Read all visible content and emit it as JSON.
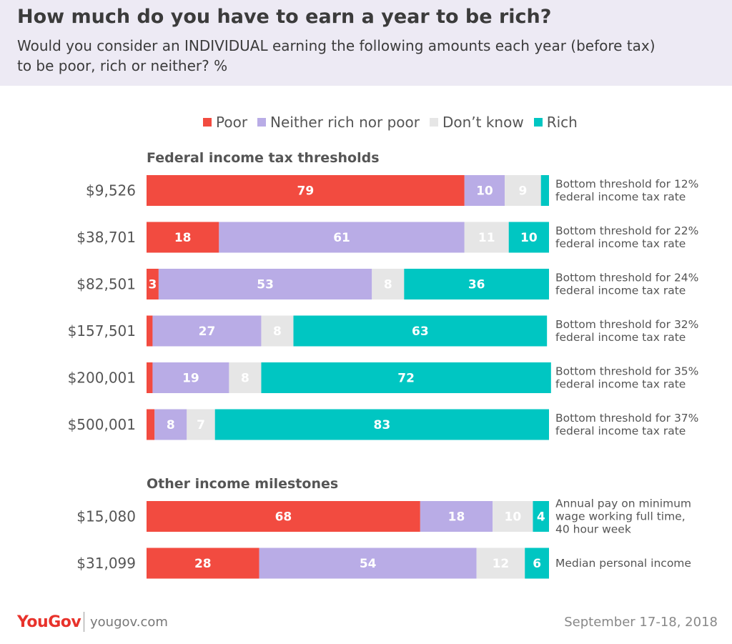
{
  "header": {
    "title": "How much do you have to earn a year to be rich?",
    "subtitle": "Would you consider an INDIVIDUAL earning the following amounts each year (before tax) to be poor, rich or neither? %"
  },
  "footer": {
    "logo": "YouGov",
    "url": "yougov.com",
    "date": "September 17-18, 2018"
  },
  "chart_data": {
    "type": "bar",
    "orientation": "horizontal",
    "stacked": true,
    "xlim": [
      0,
      100
    ],
    "series": [
      {
        "name": "Poor",
        "color": "#f24b40"
      },
      {
        "name": "Neither rich nor poor",
        "color": "#b9ace6"
      },
      {
        "name": "Don’t know",
        "color": "#e6e6e6"
      },
      {
        "name": "Rich",
        "color": "#00c6c2"
      }
    ],
    "groups": [
      {
        "title": "Federal income tax thresholds",
        "rows": [
          {
            "label": "$9,526",
            "values": [
              79,
              10,
              9,
              2
            ],
            "labels": [
              "79",
              "10",
              "9",
              ""
            ],
            "note": [
              "Bottom threshold for 12%",
              "federal income tax rate"
            ]
          },
          {
            "label": "$38,701",
            "values": [
              18,
              61,
              11,
              10
            ],
            "labels": [
              "18",
              "61",
              "11",
              "10"
            ],
            "note": [
              "Bottom threshold for 22%",
              "federal income tax rate"
            ]
          },
          {
            "label": "$82,501",
            "values": [
              3,
              53,
              8,
              36
            ],
            "labels": [
              "3",
              "53",
              "8",
              "36"
            ],
            "note": [
              "Bottom threshold for 24%",
              "federal income tax rate"
            ]
          },
          {
            "label": "$157,501",
            "values": [
              1.5,
              27,
              8,
              63
            ],
            "labels": [
              "",
              "27",
              "8",
              "63"
            ],
            "note": [
              "Bottom threshold for 32%",
              "federal income tax rate"
            ]
          },
          {
            "label": "$200,001",
            "values": [
              1.5,
              19,
              8,
              72
            ],
            "labels": [
              "",
              "19",
              "8",
              "72"
            ],
            "note": [
              "Bottom threshold for 35%",
              "federal income tax rate"
            ]
          },
          {
            "label": "$500,001",
            "values": [
              2,
              8,
              7,
              83
            ],
            "labels": [
              "",
              "8",
              "7",
              "83"
            ],
            "note": [
              "Bottom threshold for 37%",
              "federal income tax rate"
            ]
          }
        ]
      },
      {
        "title": "Other income milestones",
        "rows": [
          {
            "label": "$15,080",
            "values": [
              68,
              18,
              10,
              4
            ],
            "labels": [
              "68",
              "18",
              "10",
              "4"
            ],
            "note": [
              "Annual pay on minimum",
              "wage working full time,",
              "40 hour week"
            ]
          },
          {
            "label": "$31,099",
            "values": [
              28,
              54,
              12,
              6
            ],
            "labels": [
              "28",
              "54",
              "12",
              "6"
            ],
            "note": [
              "Median personal income"
            ]
          }
        ]
      }
    ]
  }
}
